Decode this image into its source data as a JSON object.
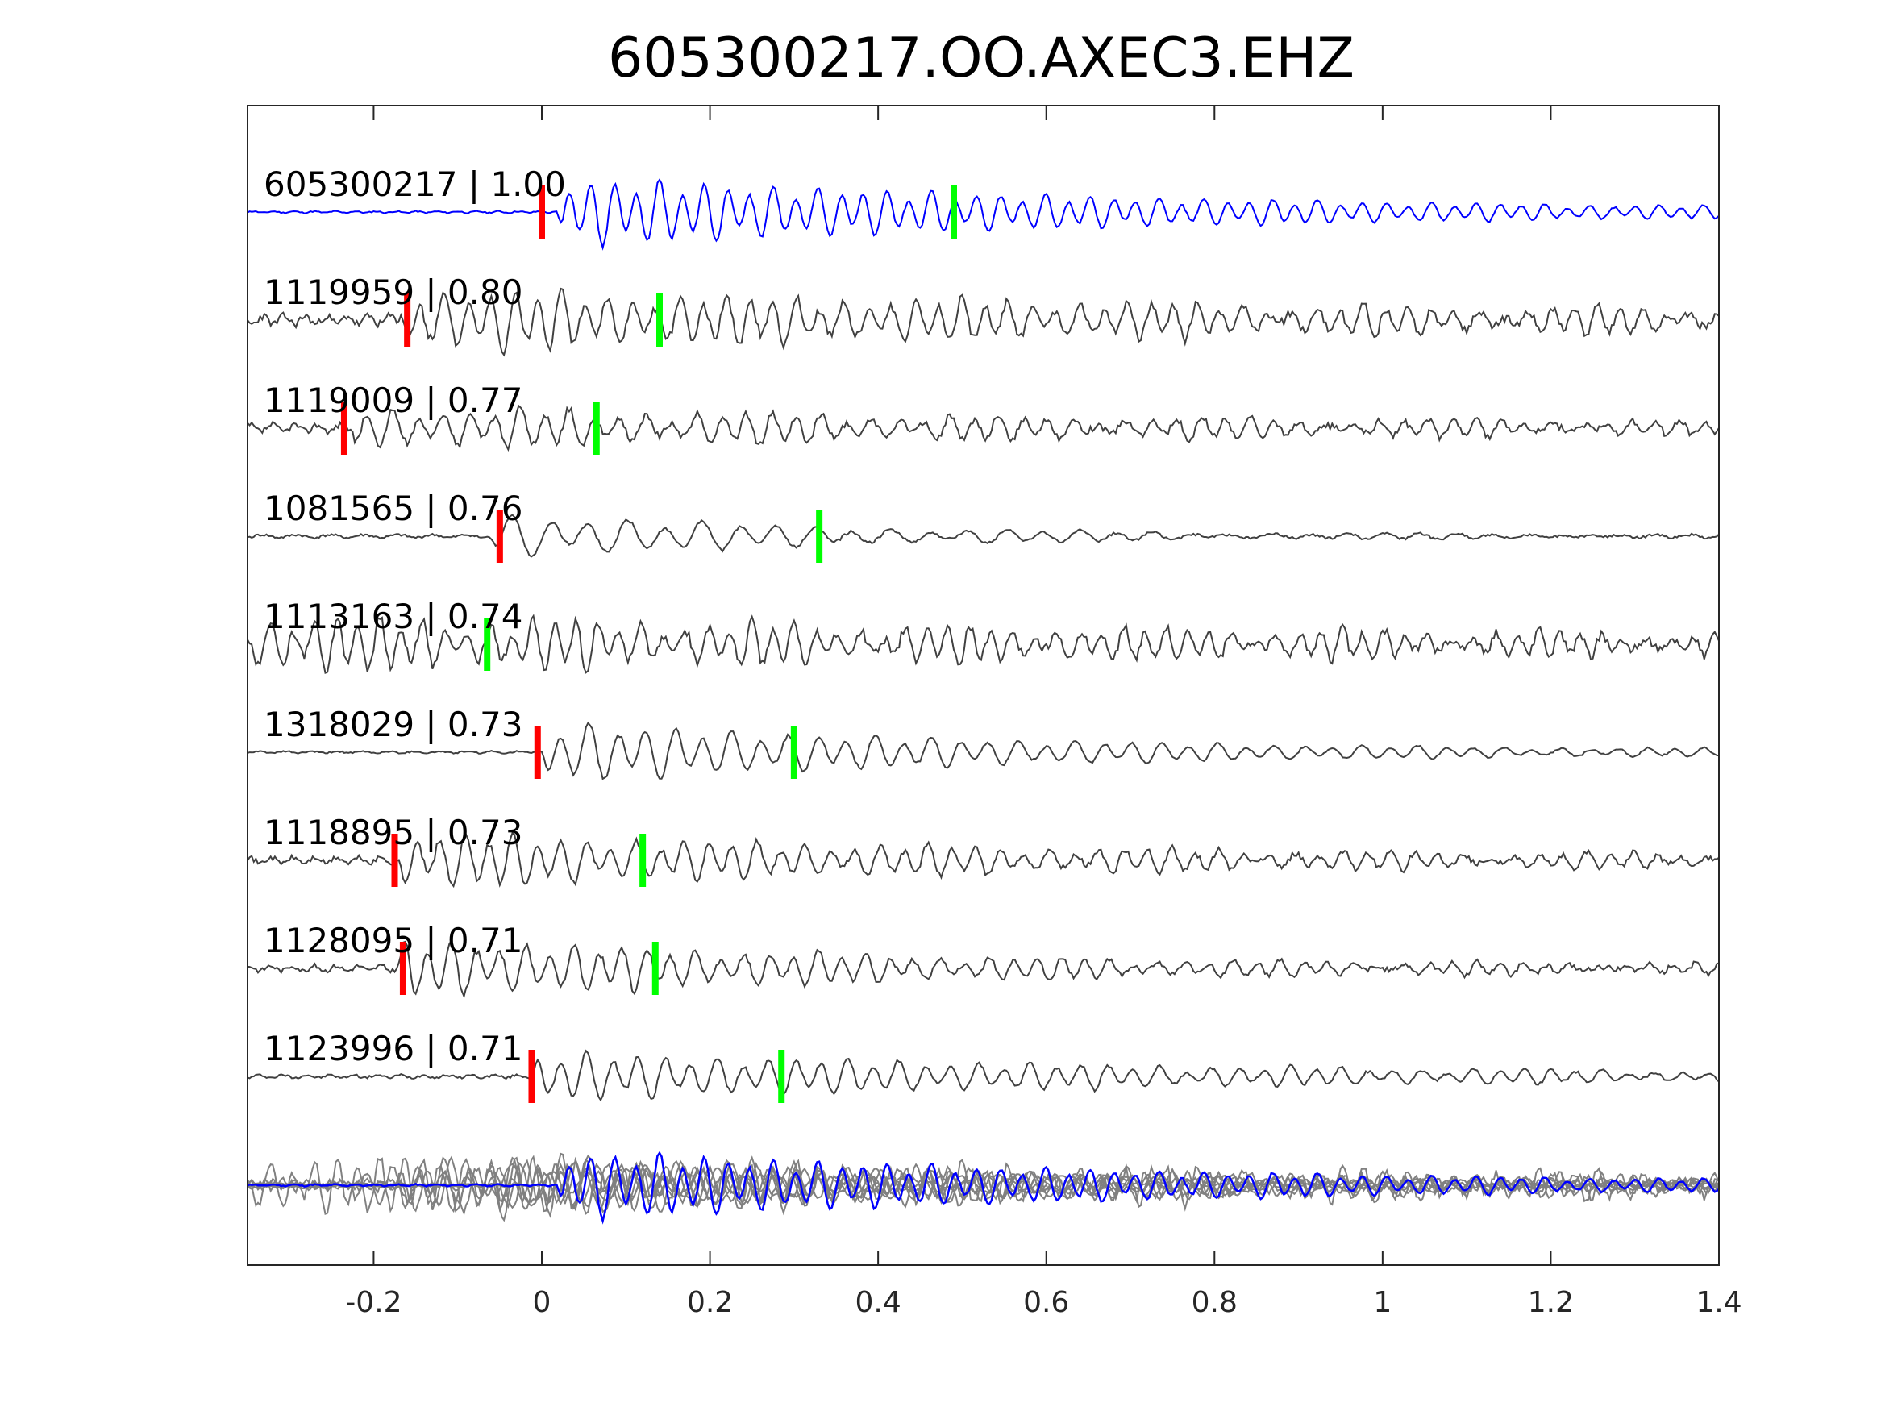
{
  "chart_data": {
    "type": "line",
    "title": "605300217.OO.AXEC3.EHZ",
    "xlabel": "",
    "ylabel": "",
    "xlim": [
      -0.35,
      1.4
    ],
    "x_ticks": [
      -0.2,
      0,
      0.2,
      0.4,
      0.6,
      0.8,
      1,
      1.2,
      1.4
    ],
    "x_tick_labels": [
      "-0.2",
      "0",
      "0.2",
      "0.4",
      "0.6",
      "0.8",
      "1",
      "1.2",
      "1.4"
    ],
    "grid": false,
    "legend": "none",
    "colors": {
      "template": "#0000ff",
      "match": "#404040",
      "stack_match": "#808080",
      "p_pick": "#ff0000",
      "s_pick": "#00ff00"
    },
    "series": [
      {
        "name": "605300217 | 1.00",
        "label": "605300217 | 1.00",
        "id": "605300217",
        "cc": 1.0,
        "p_pick": 0.0,
        "s_pick": 0.49,
        "onset": 0.02,
        "ringdown": 0.8,
        "amp": 1.0,
        "period": 0.027,
        "noise": 0.05,
        "seed": 11,
        "color": "template"
      },
      {
        "name": "1119959 | 0.80",
        "label": "1119959 | 0.80",
        "id": "1119959",
        "cc": 0.8,
        "p_pick": -0.16,
        "s_pick": 0.14,
        "onset": -0.17,
        "ringdown": 1.4,
        "amp": 0.85,
        "period": 0.028,
        "noise": 0.3,
        "seed": 23,
        "color": "match"
      },
      {
        "name": "1119009 | 0.77",
        "label": "1119009 | 0.77",
        "id": "1119009",
        "cc": 0.77,
        "p_pick": -0.235,
        "s_pick": 0.065,
        "onset": -0.23,
        "ringdown": 1.1,
        "amp": 0.6,
        "period": 0.03,
        "noise": 0.25,
        "seed": 37,
        "color": "match"
      },
      {
        "name": "1081565 | 0.76",
        "label": "1081565 | 0.76",
        "id": "1081565",
        "cc": 0.76,
        "p_pick": -0.05,
        "s_pick": 0.33,
        "onset": -0.06,
        "ringdown": 0.45,
        "amp": 0.65,
        "period": 0.045,
        "noise": 0.1,
        "seed": 41,
        "color": "match"
      },
      {
        "name": "1113163 | 0.74",
        "label": "1113163 | 0.74",
        "id": "1113163",
        "cc": 0.74,
        "p_pick": null,
        "s_pick": -0.065,
        "onset": -0.35,
        "ringdown": 1.6,
        "amp": 0.75,
        "period": 0.026,
        "noise": 0.35,
        "seed": 53,
        "color": "match"
      },
      {
        "name": "1318029 | 0.73",
        "label": "1318029 | 0.73",
        "id": "1318029",
        "cc": 0.73,
        "p_pick": -0.005,
        "s_pick": 0.3,
        "onset": 0.0,
        "ringdown": 0.65,
        "amp": 0.85,
        "period": 0.034,
        "noise": 0.06,
        "seed": 61,
        "color": "match"
      },
      {
        "name": "1118895 | 0.73",
        "label": "1118895 | 0.73",
        "id": "1118895",
        "cc": 0.73,
        "p_pick": -0.175,
        "s_pick": 0.12,
        "onset": -0.17,
        "ringdown": 0.9,
        "amp": 0.8,
        "period": 0.029,
        "noise": 0.2,
        "seed": 71,
        "color": "match"
      },
      {
        "name": "1128095 | 0.71",
        "label": "1128095 | 0.71",
        "id": "1128095",
        "cc": 0.71,
        "p_pick": -0.165,
        "s_pick": 0.135,
        "onset": -0.17,
        "ringdown": 0.7,
        "amp": 0.85,
        "period": 0.029,
        "noise": 0.18,
        "seed": 83,
        "color": "match"
      },
      {
        "name": "1123996 | 0.71",
        "label": "1123996 | 0.71",
        "id": "1123996",
        "cc": 0.71,
        "p_pick": -0.012,
        "s_pick": 0.285,
        "onset": -0.01,
        "ringdown": 0.9,
        "amp": 0.7,
        "period": 0.031,
        "noise": 0.1,
        "seed": 97,
        "color": "match"
      }
    ],
    "stack": {
      "description": "overlay of all traces",
      "template_color": "template",
      "match_color": "stack_match"
    }
  }
}
